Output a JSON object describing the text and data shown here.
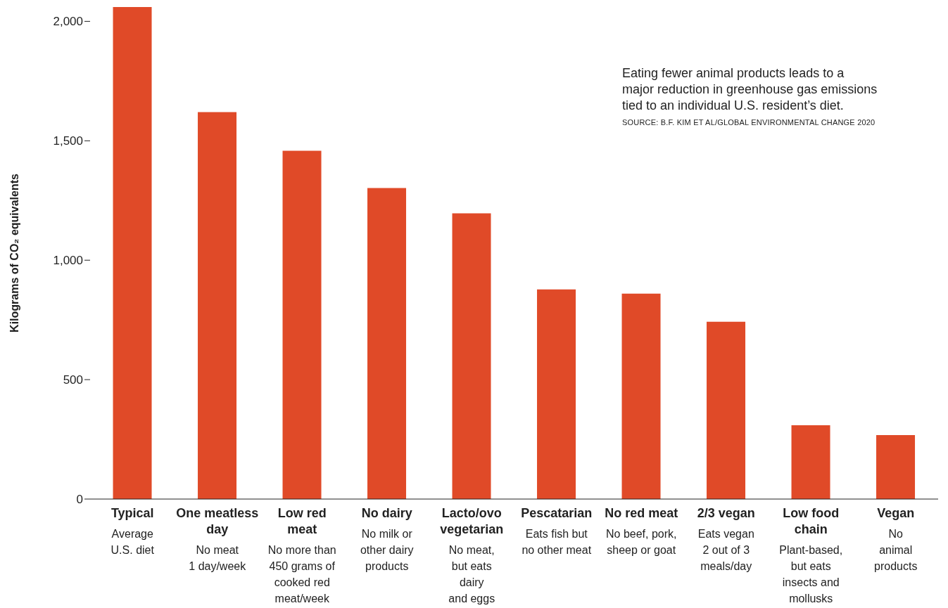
{
  "chart_data": {
    "type": "bar",
    "ylabel": "Kilograms of CO₂ equivalents",
    "categories": [
      "Typical\n\nAverage\nU.S. diet",
      "One meatless\nday\n\nNo meat\n1 day/week",
      "Low red\nmeat\n\nNo more than\n450 grams of\ncooked red\nmeat/week",
      "No dairy\n\nNo milk or\nother dairy\nproducts",
      "Lacto/ovo\nvegetarian\n\nNo meat,\nbut eats\ndairy\nand eggs",
      "Pescatarian\n\nEats fish but\nno other meat",
      "No red meat\n\nNo beef, pork,\nsheep or goat",
      "2/3 vegan\n\nEats vegan\n2 out of 3\nmeals/day",
      "Low food\nchain\n\nPlant-based,\nbut eats\ninsects and\nmollusks",
      "Vegan\n\nNo\nanimal\nproducts"
    ],
    "values": [
      2060,
      1620,
      1458,
      1302,
      1196,
      878,
      860,
      742,
      309,
      268
    ],
    "color": "#e04a28",
    "ylim": [
      0,
      2060
    ],
    "yticks": [
      0,
      {
        "value": 500,
        "label": "500"
      },
      {
        "value": 1000,
        "label": "1,000"
      },
      {
        "value": 1500,
        "label": "1,500"
      },
      {
        "value": 2000,
        "label": "2,000"
      }
    ],
    "grid": false,
    "annotations": [
      "Eating fewer animal products leads to a\nmajor reduction in greenhouse gas emissions\ntied to an individual U.S. resident’s diet.",
      "SOURCE: B.F. KIM ET AL/GLOBAL ENVIRONMENTAL CHANGE 2020"
    ]
  }
}
